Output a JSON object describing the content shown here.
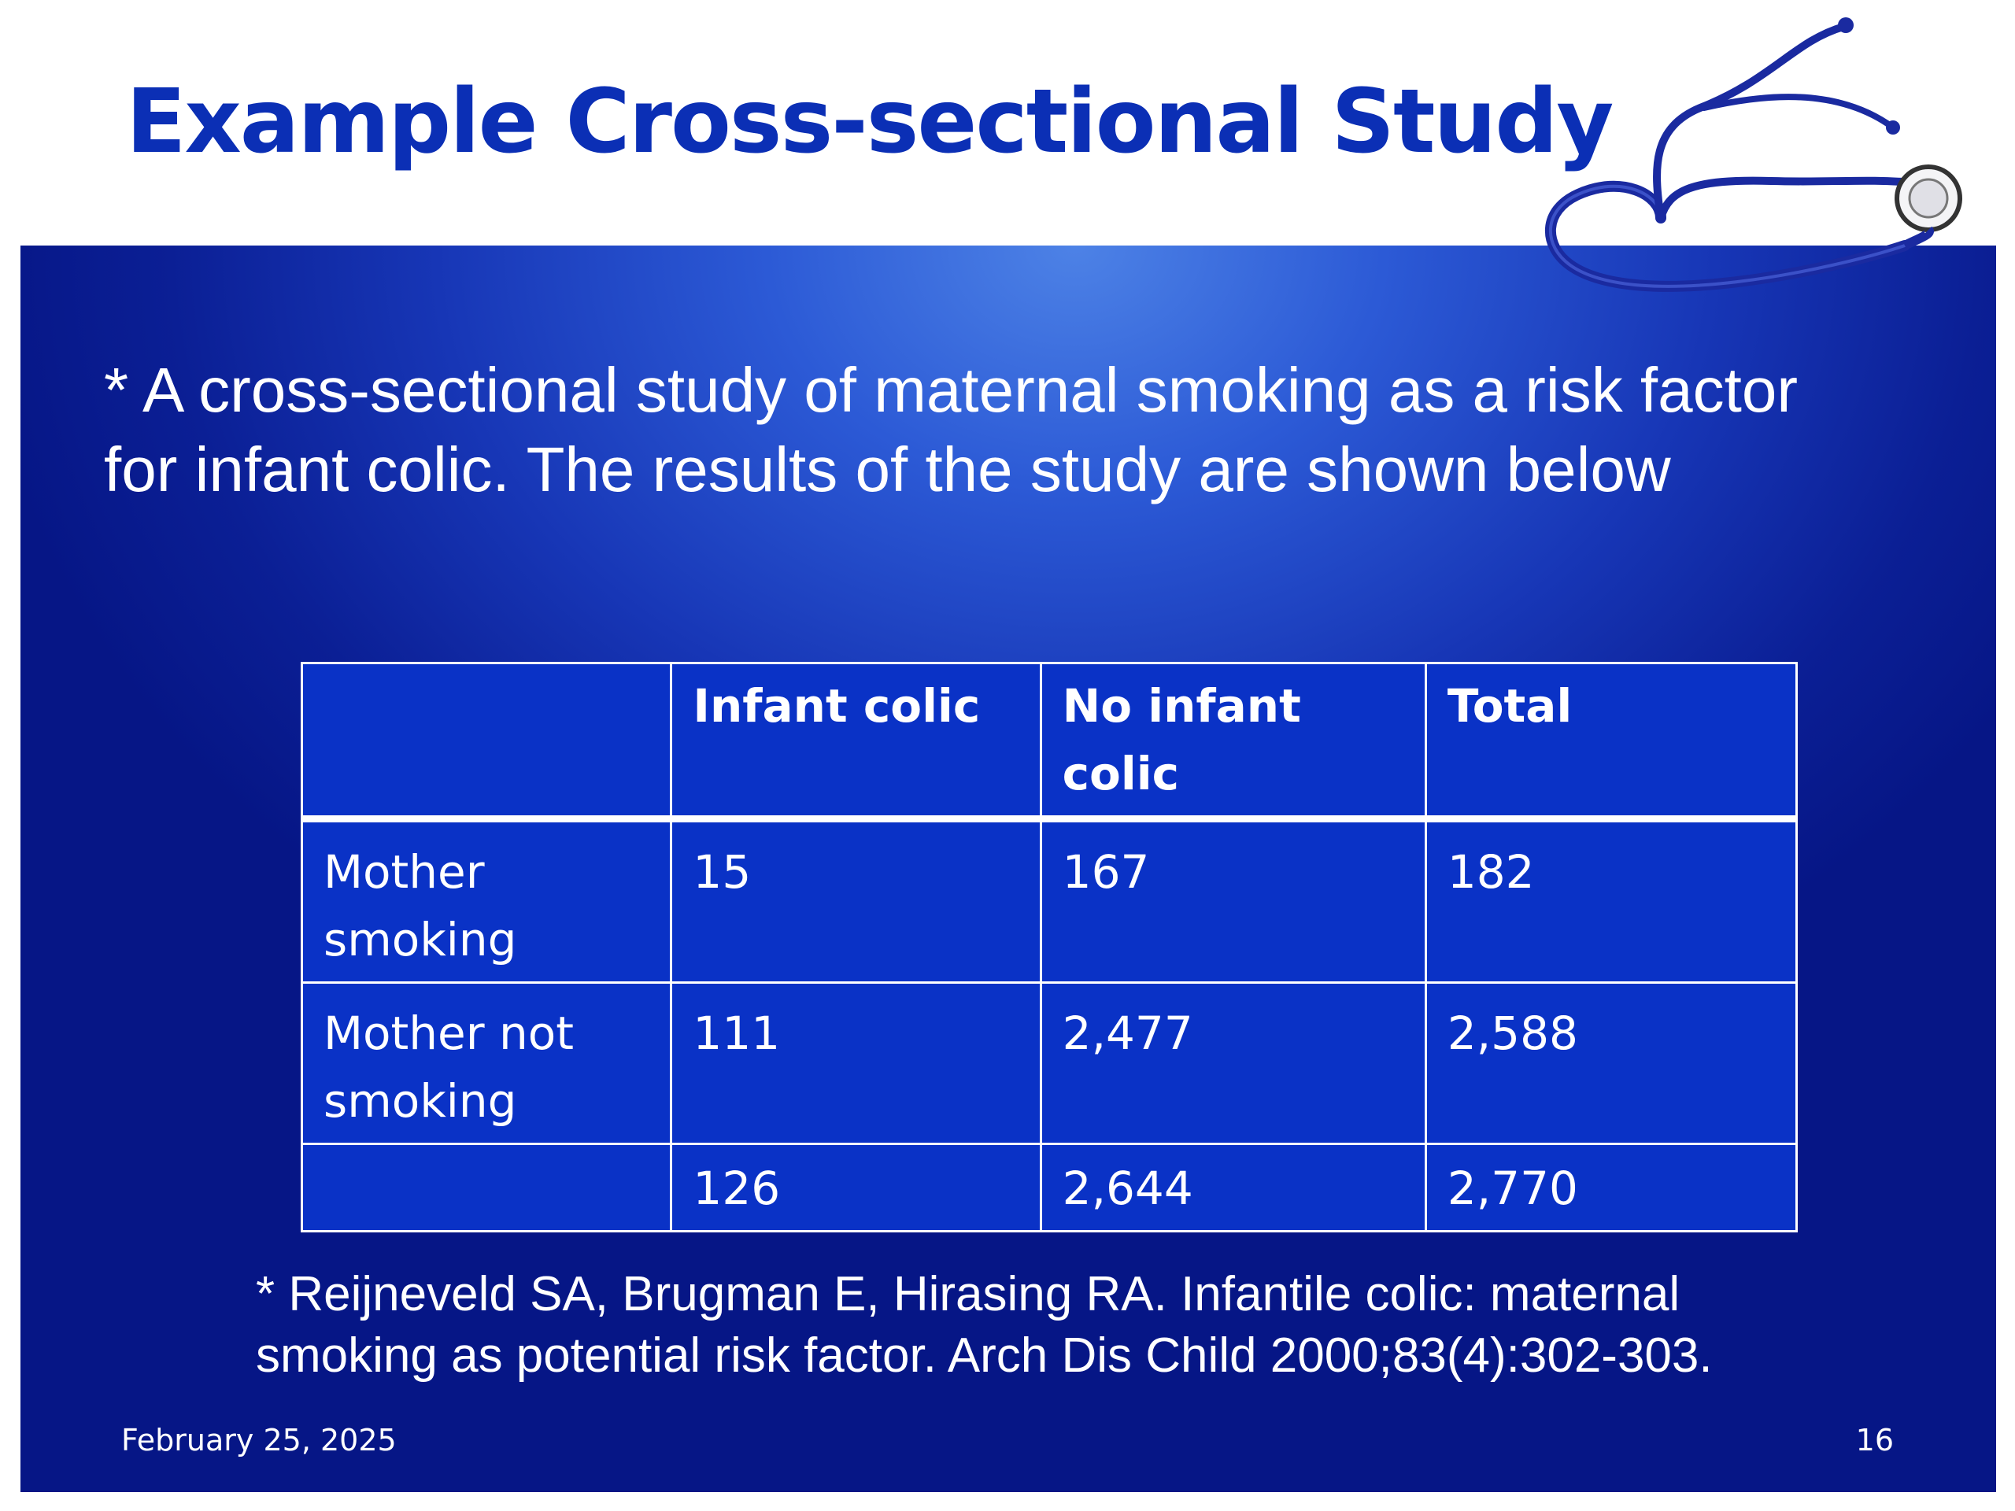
{
  "slide": {
    "title": "Example Cross-sectional Study",
    "intro": "* A cross-sectional study of maternal smoking as a risk factor for infant colic. The results of the study are shown below",
    "table": {
      "headers": [
        "",
        "Infant colic",
        "No infant colic",
        "Total"
      ],
      "rows": [
        [
          "Mother smoking",
          "15",
          "167",
          "182"
        ],
        [
          "Mother not smoking",
          "111",
          "2,477",
          "2,588"
        ],
        [
          "",
          "126",
          "2,644",
          "2,770"
        ]
      ]
    },
    "reference": "* Reijneveld SA, Brugman E, Hirasing RA. Infantile colic: maternal smoking as potential risk factor. Arch Dis Child 2000;83(4):302-303.",
    "footer": {
      "date": "February 25, 2025",
      "page_number": "16"
    },
    "decoration": {
      "icon": "stethoscope-icon"
    },
    "colors": {
      "title": "#0b2fb5",
      "panel": "#1736b6",
      "table_fill": "#0a32c6",
      "text_on_panel": "#ffffff"
    }
  }
}
